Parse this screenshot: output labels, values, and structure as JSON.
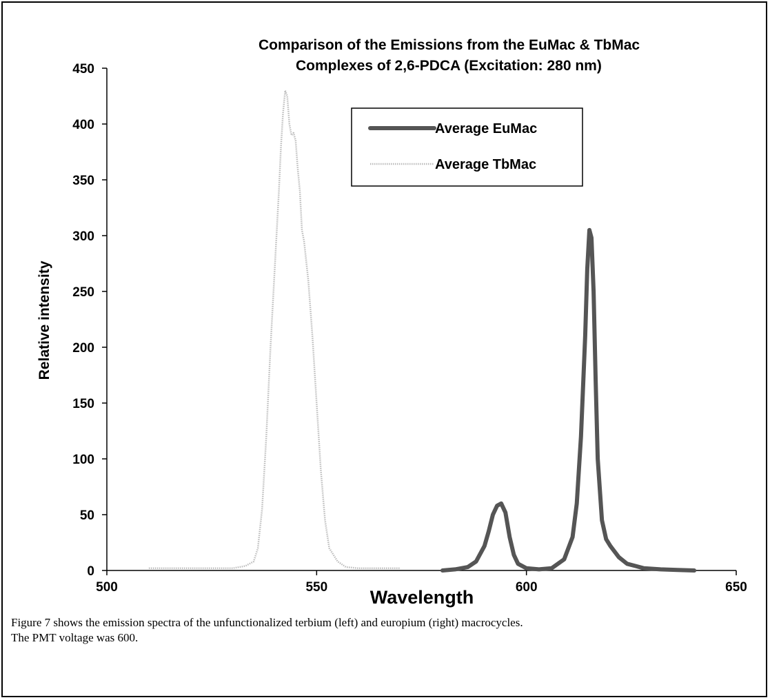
{
  "chart_data": {
    "type": "line",
    "title": [
      "Comparison of the Emissions from the EuMac & TbMac",
      "Complexes of 2,6-PDCA (Excitation: 280 nm)"
    ],
    "xlabel": "Wavelength",
    "ylabel": "Relative intensity",
    "xlim": [
      500,
      650
    ],
    "ylim": [
      0,
      450
    ],
    "xticks": [
      500,
      550,
      600,
      650
    ],
    "yticks": [
      0,
      50,
      100,
      150,
      200,
      250,
      300,
      350,
      400,
      450
    ],
    "grid": false,
    "legend_position": "top-center",
    "series": [
      {
        "name": "Average EuMac",
        "color": "#555555",
        "style": "thick-solid",
        "x": [
          580,
          583,
          586,
          588,
          590,
          591,
          592,
          593,
          594,
          595,
          596,
          597,
          598,
          600,
          603,
          606,
          609,
          611,
          612,
          613,
          614,
          614.5,
          615,
          615.5,
          616,
          616.5,
          617,
          618,
          619,
          620,
          622,
          624,
          626,
          628,
          632,
          636,
          640
        ],
        "y": [
          0,
          1,
          3,
          8,
          22,
          35,
          50,
          58,
          60,
          52,
          30,
          14,
          6,
          2,
          1,
          2,
          10,
          30,
          60,
          120,
          210,
          270,
          305,
          298,
          250,
          170,
          100,
          45,
          28,
          22,
          12,
          6,
          4,
          2,
          1,
          0.5,
          0
        ]
      },
      {
        "name": "Average TbMac",
        "color": "#bbbbbb",
        "style": "thin-dotted",
        "x": [
          510,
          515,
          520,
          525,
          530,
          533,
          535,
          536,
          537,
          538,
          539,
          540,
          541,
          541.5,
          542,
          542.5,
          543,
          543.5,
          544,
          544.5,
          545,
          545.5,
          546,
          546.5,
          547,
          548,
          549,
          550,
          551,
          552,
          553,
          555,
          557,
          560,
          565,
          570
        ],
        "y": [
          2,
          2,
          2,
          2,
          2,
          4,
          8,
          20,
          55,
          120,
          200,
          270,
          340,
          380,
          410,
          430,
          425,
          400,
          390,
          392,
          385,
          360,
          340,
          305,
          295,
          260,
          210,
          150,
          90,
          45,
          20,
          8,
          3,
          2,
          2,
          2
        ]
      }
    ]
  },
  "caption": {
    "line1": "Figure 7 shows the emission spectra of the unfunctionalized terbium (left) and europium (right) macrocycles.",
    "line2": "The PMT voltage was 600."
  }
}
